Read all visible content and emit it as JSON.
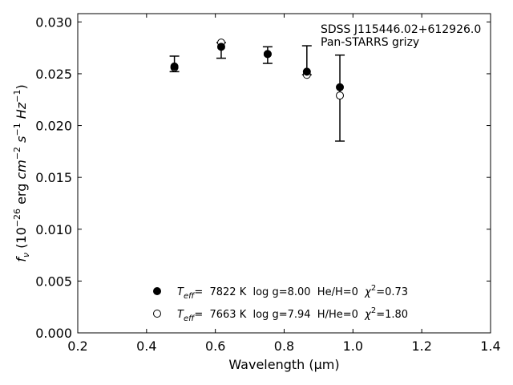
{
  "chart_data": {
    "type": "scatter",
    "xlabel": "Wavelength (μm)",
    "ylabel": "f_ν (10^-26 erg cm^-2 s^-1 Hz^-1)",
    "xlim": [
      0.2,
      1.4
    ],
    "ylim": [
      0.0,
      0.0308
    ],
    "x_ticks": [
      "0.2",
      "0.4",
      "0.6",
      "0.8",
      "1.0",
      "1.2",
      "1.4"
    ],
    "y_ticks": [
      "0.000",
      "0.005",
      "0.010",
      "0.015",
      "0.020",
      "0.025",
      "0.030"
    ],
    "annotation": [
      "SDSS J115446.02+612926.0",
      "Pan-STARRS grizy"
    ],
    "legend_position": "lower-center",
    "observed": {
      "x": [
        0.481,
        0.617,
        0.752,
        0.866,
        0.962
      ],
      "y": [
        0.026,
        0.028,
        0.0268,
        0.0249,
        0.0227
      ],
      "yerr_low": [
        0.0008,
        0.0015,
        0.0008,
        0.0,
        0.0042
      ],
      "yerr_high": [
        0.0007,
        0.0,
        0.0008,
        0.0028,
        0.0041
      ]
    },
    "series": [
      {
        "marker": "filled-circle",
        "legend": {
          "teff_sym": "T",
          "teff_sub": "eff",
          "rest": "=  7822 K  log g=8.00  He/H=0  ",
          "chi_sym": "χ",
          "chi_sup": "2",
          "chi_val": "=0.73"
        },
        "x": [
          0.481,
          0.617,
          0.752,
          0.866,
          0.962
        ],
        "y": [
          0.0257,
          0.0276,
          0.0269,
          0.0252,
          0.0237
        ]
      },
      {
        "marker": "open-circle",
        "legend": {
          "teff_sym": "T",
          "teff_sub": "eff",
          "rest": "=  7663 K  log g=7.94  H/He=0  ",
          "chi_sym": "χ",
          "chi_sup": "2",
          "chi_val": "=1.80"
        },
        "x": [
          0.481,
          0.617,
          0.752,
          0.866,
          0.962
        ],
        "y": [
          0.0256,
          0.028,
          0.0269,
          0.0249,
          0.0229
        ]
      }
    ]
  }
}
